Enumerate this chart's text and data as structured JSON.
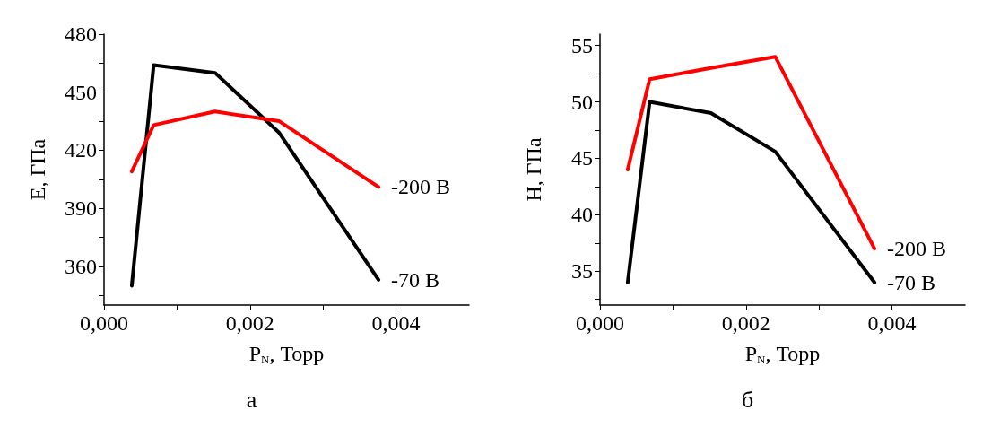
{
  "chart_data": [
    {
      "type": "line",
      "xlabel": "P$_{N}$, Торр",
      "ylabel": "E, ГПа",
      "annotations": [
        "а"
      ],
      "line_style": "solid",
      "grid": false,
      "legend": false,
      "xlim": [
        0,
        0.005
      ],
      "xticks": [
        {
          "value": 0,
          "label": "0,000"
        },
        {
          "value": 0.001,
          "label": null
        },
        {
          "value": 0.002,
          "label": "0,002"
        },
        {
          "value": 0.003,
          "label": null
        },
        {
          "value": 0.004,
          "label": "0,004"
        }
      ],
      "ylim": [
        340,
        480
      ],
      "yticks": [
        {
          "value": 345,
          "label": null
        },
        360,
        {
          "value": 375,
          "label": null
        },
        390,
        {
          "value": 405,
          "label": null
        },
        420,
        {
          "value": 435,
          "label": null
        },
        450,
        {
          "value": 465,
          "label": null
        },
        480
      ],
      "series": [
        {
          "name": "-70 В",
          "color": "#000000",
          "x": [
            0.00038,
            0.00068,
            0.00152,
            0.0024,
            0.00376
          ],
          "values": [
            350,
            464,
            460,
            429,
            353
          ]
        },
        {
          "name": "-200 В",
          "color": "#ff0000",
          "x": [
            0.00038,
            0.00068,
            0.00152,
            0.0024,
            0.00376
          ],
          "values": [
            409,
            433,
            440,
            435,
            401
          ]
        }
      ]
    },
    {
      "type": "line",
      "xlabel": "P$_{N}$, Торр",
      "ylabel": "H, ГПа",
      "annotations": [
        "б"
      ],
      "line_style": "solid",
      "grid": false,
      "legend": false,
      "xlim": [
        0,
        0.005
      ],
      "xticks": [
        {
          "value": 0,
          "label": "0,000"
        },
        {
          "value": 0.001,
          "label": null
        },
        {
          "value": 0.002,
          "label": "0,002"
        },
        {
          "value": 0.003,
          "label": null
        },
        {
          "value": 0.004,
          "label": "0,004"
        }
      ],
      "ylim": [
        32,
        56
      ],
      "yticks": [
        {
          "value": 32.5,
          "label": null
        },
        35,
        {
          "value": 37.5,
          "label": null
        },
        40,
        {
          "value": 42.5,
          "label": null
        },
        45,
        {
          "value": 47.5,
          "label": null
        },
        50,
        {
          "value": 52.5,
          "label": null
        },
        55
      ],
      "series": [
        {
          "name": "-70 В",
          "color": "#000000",
          "x": [
            0.00038,
            0.00068,
            0.00152,
            0.0024,
            0.00376
          ],
          "values": [
            34,
            50,
            49,
            45.6,
            34
          ]
        },
        {
          "name": "-200 В",
          "color": "#ff0000",
          "x": [
            0.00038,
            0.00068,
            0.00152,
            0.0024,
            0.00376
          ],
          "values": [
            44,
            52,
            53,
            54,
            37
          ]
        }
      ]
    }
  ]
}
